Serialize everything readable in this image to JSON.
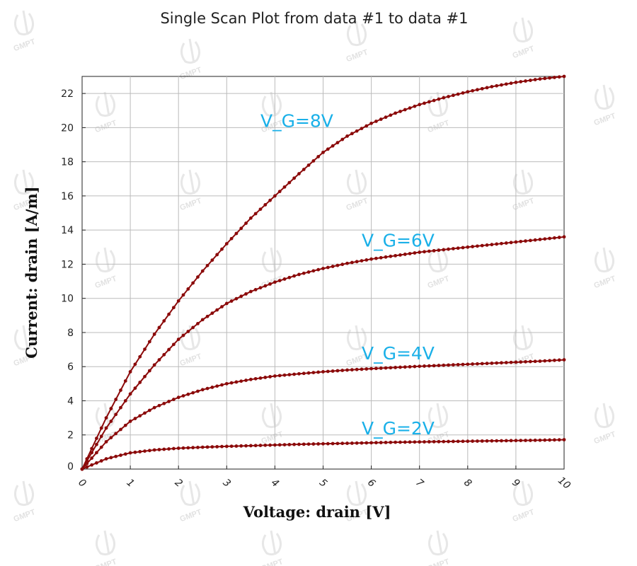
{
  "chart_data": {
    "type": "line",
    "title": "Single Scan Plot from data #1 to data #1",
    "xlabel": "Voltage: drain [V]",
    "ylabel": "Current: drain [A/m]",
    "xlim": [
      0,
      10
    ],
    "ylim": [
      0,
      23
    ],
    "xticks": [
      "0",
      "1",
      "2",
      "3",
      "4",
      "5",
      "6",
      "7",
      "8",
      "9",
      "10"
    ],
    "yticks": [
      "0",
      "2",
      "4",
      "6",
      "8",
      "10",
      "12",
      "14",
      "16",
      "18",
      "20",
      "22"
    ],
    "grid": true,
    "line_color": "#8b0a0a",
    "annotation_color": "#1ab0e8",
    "x": [
      0,
      0.5,
      1,
      1.5,
      2,
      2.5,
      3,
      3.5,
      4,
      4.5,
      5,
      5.5,
      6,
      6.5,
      7,
      7.5,
      8,
      8.5,
      9,
      9.5,
      10
    ],
    "series": [
      {
        "values": [
          0,
          0.6,
          0.95,
          1.12,
          1.22,
          1.28,
          1.33,
          1.37,
          1.41,
          1.45,
          1.48,
          1.51,
          1.54,
          1.57,
          1.59,
          1.61,
          1.63,
          1.65,
          1.67,
          1.69,
          1.72
        ]
      },
      {
        "values": [
          0,
          1.6,
          2.8,
          3.6,
          4.2,
          4.65,
          5.0,
          5.25,
          5.45,
          5.58,
          5.7,
          5.8,
          5.88,
          5.95,
          6.02,
          6.08,
          6.14,
          6.2,
          6.26,
          6.32,
          6.4
        ]
      },
      {
        "values": [
          0,
          2.4,
          4.4,
          6.1,
          7.6,
          8.75,
          9.7,
          10.4,
          10.95,
          11.4,
          11.75,
          12.05,
          12.3,
          12.5,
          12.7,
          12.85,
          13.0,
          13.15,
          13.3,
          13.45,
          13.6
        ]
      },
      {
        "values": [
          0,
          3.0,
          5.7,
          7.9,
          9.85,
          11.6,
          13.2,
          14.7,
          16.0,
          17.3,
          18.55,
          19.5,
          20.25,
          20.85,
          21.35,
          21.75,
          22.1,
          22.4,
          22.65,
          22.85,
          23.0
        ]
      }
    ],
    "annotations": [
      {
        "text": "V_G=2V",
        "x": 5.8,
        "y": 2.4
      },
      {
        "text": "V_G=4V",
        "x": 5.8,
        "y": 6.8
      },
      {
        "text": "V_G=6V",
        "x": 5.8,
        "y": 13.4
      },
      {
        "text": "V_G=8V",
        "x": 3.7,
        "y": 20.4
      }
    ]
  },
  "watermark": {
    "text": "GMPT"
  }
}
